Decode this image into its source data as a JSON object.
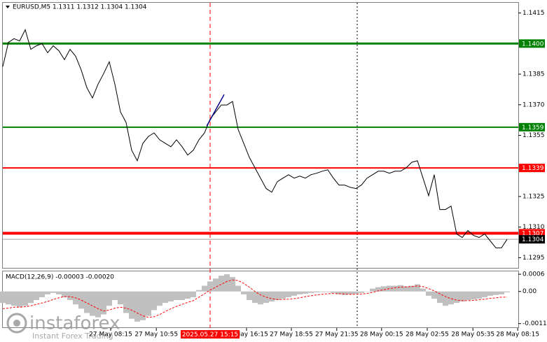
{
  "chart_data": [
    {
      "type": "line",
      "title": "EURUSD,M5  1.1311 1.1312 1.1304 1.1304",
      "series": [
        {
          "color": "#000000",
          "values": [
            1.13887,
            1.14006,
            1.14024,
            1.14013,
            1.14068,
            1.13972,
            1.13989,
            1.14,
            1.13955,
            1.13989,
            1.13965,
            1.13921,
            1.13972,
            1.13938,
            1.1387,
            1.13784,
            1.13733,
            1.13801,
            1.13853,
            1.13911,
            1.13801,
            1.13665,
            1.13613,
            1.13477,
            1.13425,
            1.13511,
            1.13545,
            1.13562,
            1.13528,
            1.13511,
            1.13494,
            1.13528,
            1.13494,
            1.13453,
            1.13477,
            1.13528,
            1.13562,
            1.1363,
            1.13665,
            1.13699,
            1.13699,
            1.13716,
            1.13579,
            1.13511,
            1.13442,
            1.13391,
            1.1334,
            1.13289,
            1.13271,
            1.13323,
            1.1334,
            1.13357,
            1.1334,
            1.1335,
            1.1334,
            1.13357,
            1.13364,
            1.13374,
            1.13381,
            1.1334,
            1.13306,
            1.13306,
            1.13295,
            1.13289,
            1.13306,
            1.1334,
            1.13357,
            1.13374,
            1.13374,
            1.13364,
            1.13374,
            1.13374,
            1.13391,
            1.13418,
            1.13425,
            1.1334,
            1.13254,
            1.13357,
            1.13186,
            1.13186,
            1.13203,
            1.13066,
            1.13049,
            1.13083,
            1.13059,
            1.13049,
            1.13066,
            1.13032,
            1.12998,
            1.12998,
            1.1304
          ]
        }
      ],
      "levels": [
        {
          "value": 1.14,
          "label": "1.1400",
          "color": "#008000"
        },
        {
          "value": 1.1359,
          "label": "1.1359",
          "color": "#008000"
        },
        {
          "value": 1.1339,
          "label": "1.1339",
          "color": "#ff0000"
        },
        {
          "value": 1.1307,
          "label": "1.1307",
          "color": "#ff0000"
        },
        {
          "value": 1.1304,
          "label": "1.1304",
          "color": "#000000"
        }
      ],
      "trendline": {
        "x": [
          36.4,
          39.5
        ],
        "values": [
          1.13596,
          1.1375
        ],
        "color": "#00008b"
      },
      "xlim": [
        0,
        92
      ],
      "xticks": [
        {
          "value": 19.25,
          "label": "27 May 08:15"
        },
        {
          "value": 27.4,
          "label": "27 May 10:55"
        },
        {
          "value": 43.5,
          "label": "27 May 16:15"
        },
        {
          "value": 51.5,
          "label": "27 May 18:55"
        },
        {
          "value": 59.6,
          "label": "27 May 21:35"
        },
        {
          "value": 67.6,
          "label": "28 May 00:15"
        },
        {
          "value": 75.75,
          "label": "28 May 02:55"
        },
        {
          "value": 83.9,
          "label": "28 May 05:35"
        },
        {
          "value": 91.9,
          "label": "28 May 08:15"
        }
      ],
      "crosshair": {
        "value": 37,
        "label": "2025.05.27 15:15",
        "color": "#ff0000"
      },
      "ylim": [
        1.129,
        1.142
      ],
      "yticks": [
        1.1415,
        1.1385,
        {
          "value": 1.137,
          "label": "1.1370"
        },
        1.1355,
        1.1325,
        {
          "value": 1.131,
          "label": "1.1310"
        },
        1.1295
      ]
    },
    {
      "type": "macd",
      "title": "MACD(12,26,9) -0.00003 -0.00020",
      "histogram": {
        "color": "#c0c0c0",
        "values": [
          -0.0004,
          -0.00045,
          -0.0005,
          -0.00055,
          -0.0005,
          -0.0004,
          -0.0003,
          -0.0002,
          -0.0001,
          -5e-05,
          -0.0001,
          -0.0002,
          -0.0003,
          -0.00045,
          -0.0006,
          -0.00075,
          -0.00085,
          -0.0009,
          -0.0008,
          -0.0005,
          -0.0003,
          -0.00045,
          -0.00075,
          -0.00095,
          -0.00105,
          -0.001,
          -0.00085,
          -0.00065,
          -0.0005,
          -0.0004,
          -0.00035,
          -0.0003,
          -0.0003,
          -0.00025,
          -0.0002,
          5e-05,
          0.0002,
          0.00035,
          0.00045,
          0.00055,
          0.0006,
          0.0005,
          0.0002,
          -0.0001,
          -0.0003,
          -0.0004,
          -0.00045,
          -0.0004,
          -0.00035,
          -0.0003,
          -0.00025,
          -0.0002,
          -0.00015,
          -0.0001,
          -8e-05,
          -5e-05,
          -3e-05,
          -2e-05,
          -2e-05,
          -5e-05,
          -0.0001,
          -0.00012,
          -0.0001,
          -8e-05,
          -5e-05,
          0,
          0.0001,
          0.00015,
          0.00018,
          0.0002,
          0.0002,
          0.00022,
          0.00018,
          0.0002,
          0.00025,
          0.0001,
          -0.00015,
          -0.00025,
          -0.0004,
          -0.0005,
          -0.00045,
          -0.0004,
          -0.00035,
          -0.0003,
          -0.00028,
          -0.00025,
          -0.0002,
          -0.00015,
          -0.00012,
          -0.0001,
          -3e-05
        ]
      },
      "signal": {
        "color": "#ff0000",
        "values": [
          -0.0006,
          -0.00058,
          -0.00055,
          -0.00055,
          -0.00053,
          -0.0005,
          -0.00045,
          -0.0004,
          -0.00035,
          -0.00028,
          -0.00022,
          -0.00018,
          -0.00018,
          -0.00022,
          -0.0003,
          -0.0004,
          -0.0005,
          -0.0006,
          -0.00068,
          -0.00065,
          -0.00058,
          -0.00055,
          -0.00058,
          -0.00065,
          -0.00075,
          -0.00085,
          -0.0009,
          -0.00088,
          -0.0008,
          -0.0007,
          -0.0006,
          -0.00052,
          -0.00045,
          -0.00038,
          -0.00032,
          -0.0002,
          -8e-05,
          5e-05,
          0.00015,
          0.00025,
          0.00035,
          0.0004,
          0.00038,
          0.00028,
          0.00015,
          0,
          -0.00012,
          -0.0002,
          -0.00025,
          -0.00028,
          -0.00028,
          -0.00027,
          -0.00025,
          -0.00022,
          -0.00018,
          -0.00015,
          -0.00012,
          -0.0001,
          -8e-05,
          -7e-05,
          -8e-05,
          -9e-05,
          -0.0001,
          -0.0001,
          -9e-05,
          -7e-05,
          -3e-05,
          2e-05,
          6e-05,
          0.0001,
          0.00013,
          0.00015,
          0.00016,
          0.00017,
          0.00019,
          0.00017,
          0.0001,
          2e-05,
          -8e-05,
          -0.00018,
          -0.00025,
          -0.0003,
          -0.00032,
          -0.00032,
          -0.00031,
          -0.00029,
          -0.00027,
          -0.00024,
          -0.00022,
          -0.0002,
          -0.0002
        ]
      },
      "ylim": [
        -0.0012,
        0.0007
      ],
      "yticks": [
        0.0006,
        {
          "value": 0,
          "label": "0.00"
        },
        -0.00112
      ]
    }
  ],
  "branding": {
    "name": "instaforex",
    "tagline": "Instant Forex Trading"
  }
}
